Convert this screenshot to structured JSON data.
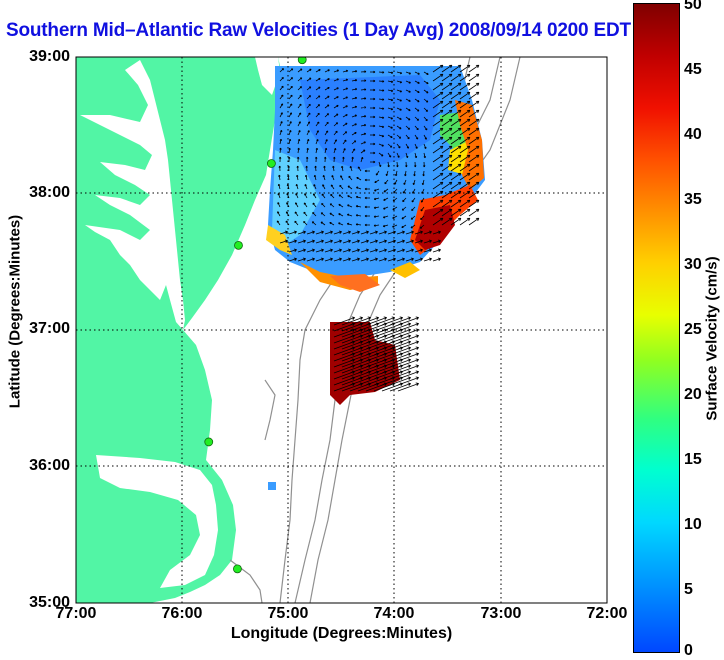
{
  "title": "Southern Mid–Atlantic Raw Velocities (1 Day Avg) 2008/09/14 0200 EDT",
  "axes": {
    "xlabel": "Longitude (Degrees:Minutes)",
    "ylabel": "Latitude (Degrees:Minutes)",
    "xticks": [
      "77:00",
      "76:00",
      "75:00",
      "74:00",
      "73:00",
      "72:00"
    ],
    "yticks": [
      "39:00",
      "38:00",
      "37:00",
      "36:00",
      "35:00"
    ]
  },
  "colorbar": {
    "label": "Surface Velocity (cm/s)",
    "ticks": [
      "50",
      "45",
      "40",
      "35",
      "30",
      "25",
      "20",
      "15",
      "10",
      "5",
      "0"
    ],
    "range": [
      0,
      50
    ]
  },
  "colors": {
    "title": "#1010e0",
    "land": "#52f5a5",
    "contour": "#909090",
    "station": "#22ee22",
    "grid": "#000000"
  },
  "map": {
    "lon_range": [
      -77,
      -72
    ],
    "lat_range": [
      35,
      39
    ],
    "grid": "dotted",
    "stations": [
      {
        "lon": -74.87,
        "lat": 38.98
      },
      {
        "lon": -75.16,
        "lat": 38.22
      },
      {
        "lon": -75.47,
        "lat": 37.62
      },
      {
        "lon": -75.75,
        "lat": 36.18
      },
      {
        "lon": -75.48,
        "lat": 35.25
      }
    ]
  }
}
